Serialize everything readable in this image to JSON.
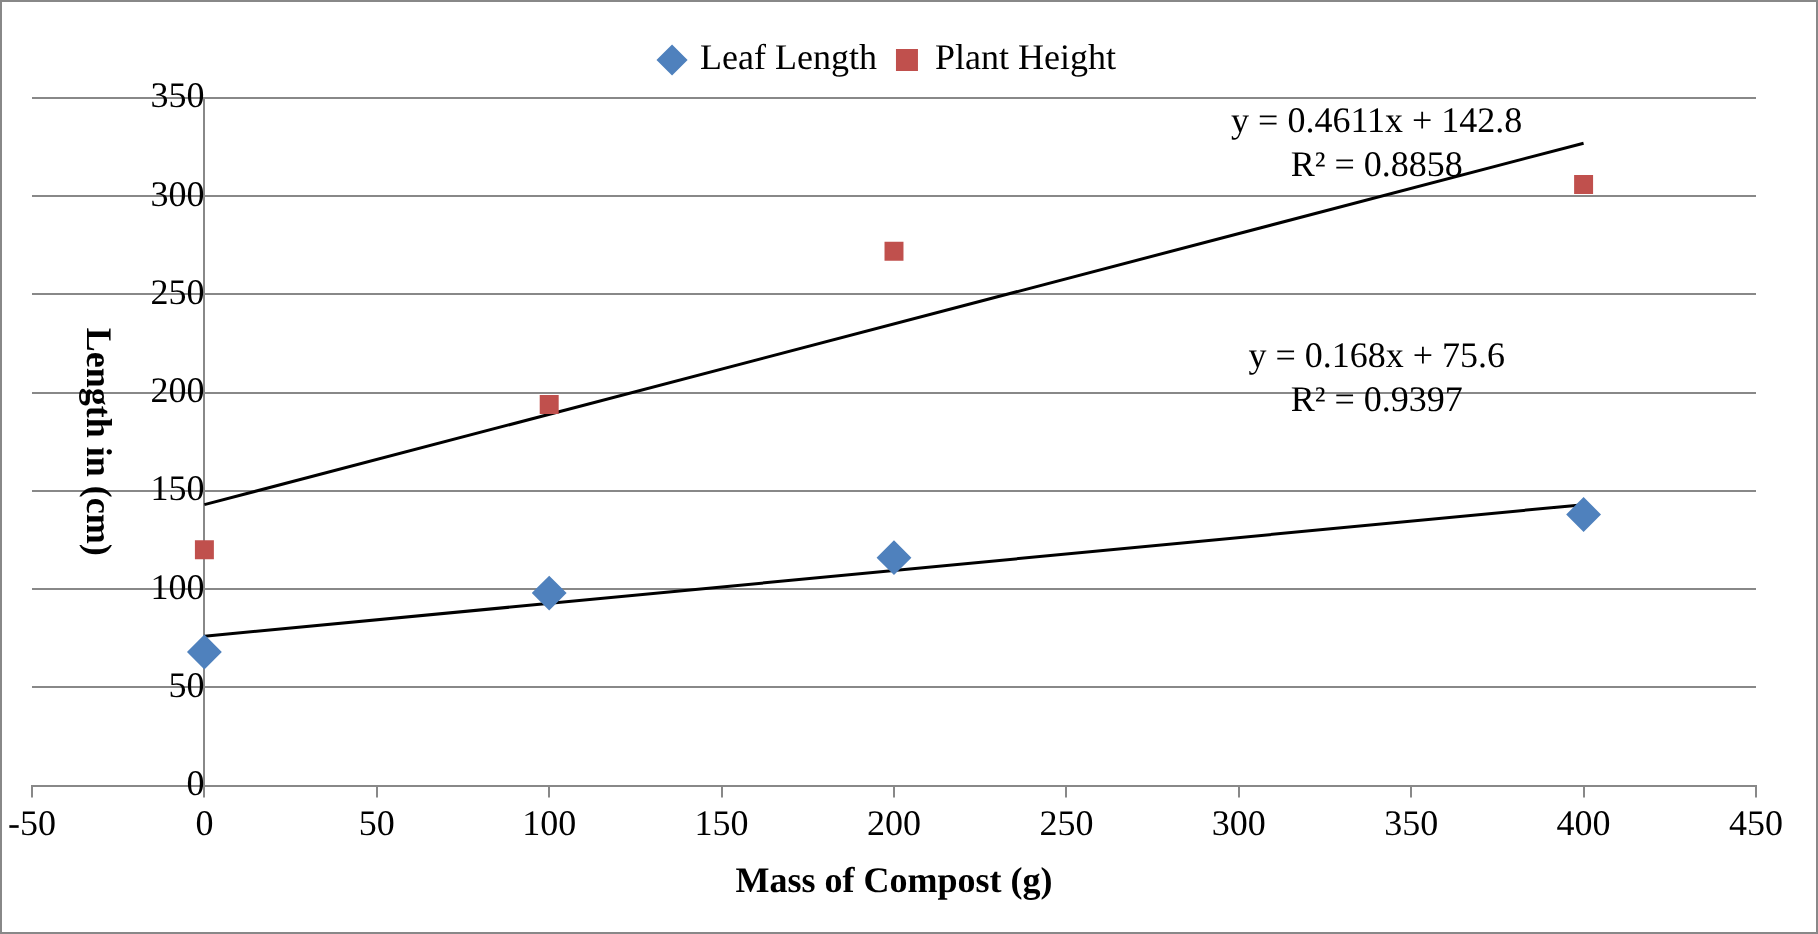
{
  "chart_data": {
    "type": "scatter",
    "xlabel": "Mass of Compost (g)",
    "ylabel": "Length in (cm)",
    "xlim": [
      -50,
      450
    ],
    "xticks": [
      -50,
      0,
      50,
      100,
      150,
      200,
      250,
      300,
      350,
      400,
      450
    ],
    "ylim": [
      0,
      350
    ],
    "yticks": [
      0,
      50,
      100,
      150,
      200,
      250,
      300,
      350
    ],
    "grid": "y",
    "legend": "top",
    "series": [
      {
        "name": "Leaf Length",
        "color": "#4f81bd",
        "marker": "diamond",
        "x": [
          0,
          100,
          200,
          400
        ],
        "values": [
          68,
          98,
          116,
          138
        ]
      },
      {
        "name": "Plant Height",
        "color": "#c0504d",
        "marker": "square",
        "x": [
          0,
          100,
          200,
          400
        ],
        "values": [
          120,
          194,
          272,
          306
        ]
      },
      {
        "type": "line",
        "color": "#000000",
        "marker": "none",
        "x": [
          0,
          400
        ],
        "values": [
          143,
          327
        ]
      },
      {
        "type": "line",
        "color": "#000000",
        "marker": "none",
        "x": [
          0,
          400
        ],
        "values": [
          76,
          143
        ]
      }
    ],
    "annotations": [
      "y = 0.4611x + 142.8",
      "R² = 0.8858",
      "y = 0.168x + 75.6",
      "R² = 0.9397"
    ]
  }
}
